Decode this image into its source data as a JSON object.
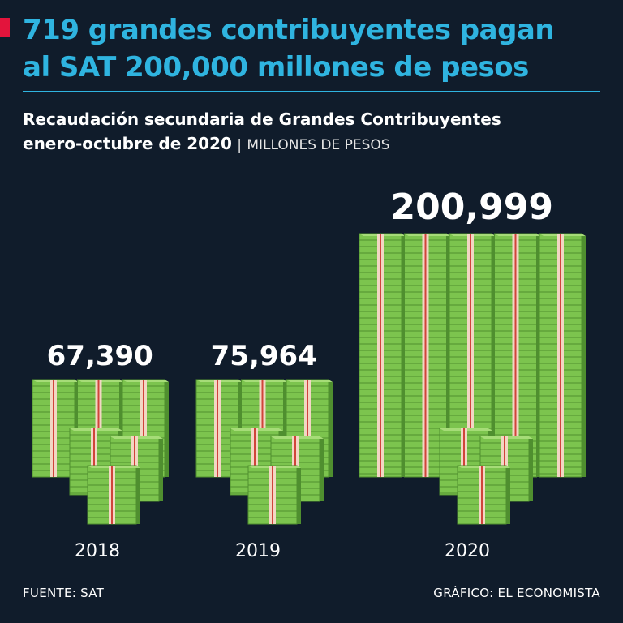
{
  "headline": {
    "line1": "719 grandes contribuyentes pagan",
    "line2": "al SAT 200,000 millones de pesos"
  },
  "subtitle": {
    "line1": "Recaudación secundaria de Grandes Contribuyentes",
    "line2": "enero-octubre de 2020",
    "separator": "|",
    "unit": "MILLONES DE PESOS"
  },
  "chart_data": {
    "type": "bar",
    "categories": [
      "2018",
      "2019",
      "2020"
    ],
    "values": [
      67390,
      75964,
      200999
    ],
    "value_labels": [
      "67,390",
      "75,964",
      "200,999"
    ],
    "colors": {
      "money": "#7cc44e",
      "money_dark": "#4f8f2f",
      "band": "#f2d6c4",
      "band_stripe": "#d0443a",
      "background": "#101c2b",
      "accent": "#2fb4e0"
    }
  },
  "footer": {
    "source": "FUENTE: SAT",
    "credit": "GRÁFICO: EL ECONOMISTA"
  }
}
